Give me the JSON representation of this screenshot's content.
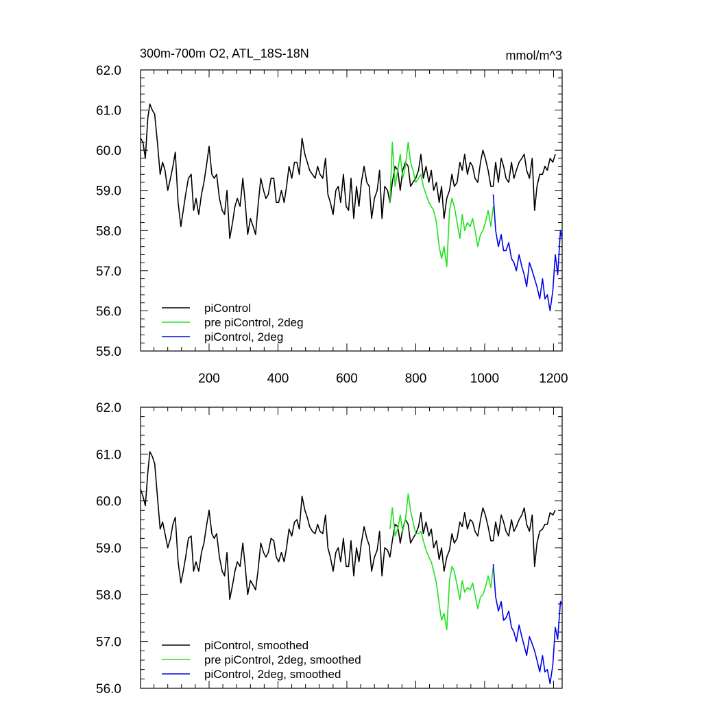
{
  "figure": {
    "title_left": "300m-700m O2, ATL_18S-18N",
    "title_right": "mmol/m^3"
  },
  "chart_data": [
    {
      "type": "line",
      "title": "300m-700m O2, ATL_18S-18N",
      "units": "mmol/m^3",
      "xlabel": "",
      "ylabel": "",
      "xlim": [
        1,
        1225
      ],
      "ylim": [
        55.0,
        62.0
      ],
      "x_ticks": [
        200,
        400,
        600,
        800,
        1000,
        1200
      ],
      "x_tick_labels": [
        "200",
        "400",
        "600",
        "800",
        "1000",
        "1200"
      ],
      "y_ticks": [
        55,
        56,
        57,
        58,
        59,
        60,
        61,
        62
      ],
      "y_tick_labels": [
        "55.0",
        "56.0",
        "57.0",
        "58.0",
        "59.0",
        "60.0",
        "61.0",
        "62.0"
      ],
      "grid": false,
      "legend_position": "bottom-left",
      "series": [
        {
          "name": "piControl",
          "color": "#000000",
          "x": [
            1,
            8,
            15,
            22,
            28,
            35,
            42,
            50,
            58,
            65,
            72,
            80,
            88,
            95,
            102,
            110,
            118,
            125,
            132,
            140,
            148,
            155,
            162,
            170,
            178,
            185,
            192,
            200,
            208,
            215,
            222,
            230,
            238,
            245,
            252,
            260,
            268,
            275,
            282,
            290,
            298,
            305,
            312,
            320,
            328,
            335,
            342,
            350,
            358,
            365,
            372,
            380,
            388,
            395,
            402,
            410,
            418,
            425,
            432,
            440,
            448,
            455,
            462,
            470,
            478,
            485,
            492,
            500,
            508,
            515,
            522,
            530,
            538,
            545,
            552,
            560,
            568,
            575,
            582,
            590,
            598,
            605,
            612,
            620,
            628,
            635,
            642,
            650,
            658,
            665,
            672,
            680,
            688,
            695,
            702,
            710,
            718,
            725,
            732,
            740,
            748,
            755,
            762,
            770,
            778,
            785,
            792,
            800,
            808,
            815,
            822,
            830,
            838,
            845,
            852,
            860,
            868,
            875,
            882,
            890,
            898,
            905,
            912,
            920,
            928,
            935,
            942,
            950,
            958,
            965,
            972,
            980,
            988,
            995,
            1002,
            1010,
            1018,
            1025,
            1032,
            1040,
            1048,
            1055,
            1062,
            1070,
            1078,
            1085,
            1092,
            1100,
            1108,
            1115,
            1122,
            1130,
            1138,
            1145,
            1152,
            1160,
            1168,
            1175,
            1182,
            1190,
            1198,
            1205
          ],
          "y": [
            60.3,
            60.2,
            59.8,
            60.8,
            61.15,
            61.0,
            60.9,
            60.2,
            59.4,
            59.7,
            59.5,
            59.0,
            59.3,
            59.6,
            59.95,
            58.7,
            58.1,
            58.5,
            58.9,
            59.3,
            59.4,
            58.5,
            58.8,
            58.4,
            58.9,
            59.2,
            59.6,
            60.1,
            59.4,
            59.3,
            59.4,
            58.8,
            58.5,
            58.4,
            59.0,
            57.8,
            58.2,
            58.6,
            58.8,
            58.6,
            59.3,
            58.7,
            57.9,
            58.3,
            58.1,
            57.9,
            58.6,
            59.3,
            59.0,
            58.8,
            58.9,
            59.3,
            59.3,
            58.7,
            58.7,
            59.0,
            58.7,
            59.1,
            59.6,
            59.3,
            59.7,
            59.7,
            59.4,
            60.3,
            59.9,
            59.7,
            59.5,
            59.4,
            59.3,
            59.6,
            59.4,
            59.3,
            59.8,
            58.9,
            58.7,
            58.4,
            59.0,
            59.1,
            58.7,
            59.4,
            58.6,
            58.5,
            59.3,
            58.3,
            59.1,
            58.6,
            59.2,
            59.6,
            59.2,
            59.1,
            58.3,
            58.8,
            59.0,
            59.5,
            58.3,
            59.1,
            59.0,
            58.7,
            59.2,
            59.6,
            59.5,
            59.0,
            59.5,
            59.7,
            59.6,
            59.1,
            59.2,
            59.3,
            59.5,
            59.9,
            59.3,
            59.6,
            59.2,
            59.5,
            59.0,
            59.2,
            58.7,
            59.1,
            58.3,
            58.8,
            59.0,
            59.4,
            59.1,
            59.2,
            59.7,
            59.5,
            59.9,
            59.4,
            59.7,
            59.6,
            59.3,
            59.2,
            59.7,
            60.0,
            59.8,
            59.5,
            59.1,
            59.1,
            59.7,
            59.2,
            59.8,
            59.6,
            59.3,
            59.2,
            59.7,
            59.3,
            59.5,
            59.7,
            59.8,
            59.9,
            59.5,
            59.3,
            59.8,
            58.5,
            59.1,
            59.4,
            59.4,
            59.6,
            59.5,
            59.8,
            59.7,
            59.9
          ]
        },
        {
          "name": "pre piControl, 2deg",
          "color": "#1ee11e",
          "x": [
            725,
            732,
            740,
            748,
            755,
            762,
            770,
            778,
            785,
            792,
            800,
            808,
            815,
            822,
            830,
            838,
            845,
            852,
            860,
            868,
            875,
            882,
            890,
            898,
            905,
            912,
            920,
            928,
            935,
            942,
            950,
            958,
            965,
            972,
            980,
            988,
            995,
            1002,
            1010,
            1018,
            1025
          ],
          "y": [
            58.7,
            60.2,
            59.1,
            59.5,
            59.9,
            59.3,
            59.6,
            60.2,
            59.7,
            59.5,
            59.2,
            59.3,
            59.4,
            59.1,
            58.9,
            58.7,
            58.6,
            58.5,
            58.2,
            57.6,
            57.3,
            57.6,
            57.1,
            58.5,
            58.8,
            58.6,
            58.2,
            57.8,
            58.4,
            58.0,
            58.2,
            58.1,
            58.3,
            58.0,
            57.6,
            57.9,
            58.0,
            58.2,
            58.5,
            58.1,
            58.6
          ]
        },
        {
          "name": "piControl, 2deg",
          "color": "#0000e6",
          "x": [
            1025,
            1032,
            1040,
            1048,
            1055,
            1062,
            1070,
            1078,
            1085,
            1092,
            1100,
            1108,
            1115,
            1122,
            1130,
            1138,
            1145,
            1152,
            1160,
            1168,
            1175,
            1182,
            1190,
            1198,
            1205,
            1212,
            1220,
            1225
          ],
          "y": [
            58.9,
            58.0,
            57.6,
            57.9,
            57.5,
            57.5,
            57.7,
            57.3,
            57.2,
            57.0,
            57.4,
            57.1,
            56.9,
            56.6,
            57.2,
            57.0,
            56.8,
            56.6,
            56.3,
            56.8,
            56.3,
            56.4,
            56.0,
            56.5,
            57.4,
            56.9,
            58.0,
            57.8
          ]
        }
      ]
    },
    {
      "type": "line",
      "title": "",
      "xlabel": "",
      "ylabel": "",
      "xlim": [
        1,
        1225
      ],
      "ylim": [
        56.0,
        62.0
      ],
      "y_ticks": [
        56,
        57,
        58,
        59,
        60,
        61,
        62
      ],
      "y_tick_labels": [
        "56.0",
        "57.0",
        "58.0",
        "59.0",
        "60.0",
        "61.0",
        "62.0"
      ],
      "grid": false,
      "legend_position": "bottom-left",
      "series": [
        {
          "name": "piControl, smoothed",
          "color": "#000000",
          "x": [
            1,
            8,
            15,
            22,
            28,
            35,
            42,
            50,
            58,
            65,
            72,
            80,
            88,
            95,
            102,
            110,
            118,
            125,
            132,
            140,
            148,
            155,
            162,
            170,
            178,
            185,
            192,
            200,
            208,
            215,
            222,
            230,
            238,
            245,
            252,
            260,
            268,
            275,
            282,
            290,
            298,
            305,
            312,
            320,
            328,
            335,
            342,
            350,
            358,
            365,
            372,
            380,
            388,
            395,
            402,
            410,
            418,
            425,
            432,
            440,
            448,
            455,
            462,
            470,
            478,
            485,
            492,
            500,
            508,
            515,
            522,
            530,
            538,
            545,
            552,
            560,
            568,
            575,
            582,
            590,
            598,
            605,
            612,
            620,
            628,
            635,
            642,
            650,
            658,
            665,
            672,
            680,
            688,
            695,
            702,
            710,
            718,
            725,
            732,
            740,
            748,
            755,
            762,
            770,
            778,
            785,
            792,
            800,
            808,
            815,
            822,
            830,
            838,
            845,
            852,
            860,
            868,
            875,
            882,
            890,
            898,
            905,
            912,
            920,
            928,
            935,
            942,
            950,
            958,
            965,
            972,
            980,
            988,
            995,
            1002,
            1010,
            1018,
            1025,
            1032,
            1040,
            1048,
            1055,
            1062,
            1070,
            1078,
            1085,
            1092,
            1100,
            1108,
            1115,
            1122,
            1130,
            1138,
            1145,
            1152,
            1160,
            1168,
            1175,
            1182,
            1190,
            1198,
            1205
          ],
          "y": [
            60.25,
            60.1,
            59.9,
            60.6,
            61.05,
            60.95,
            60.8,
            60.1,
            59.4,
            59.55,
            59.3,
            59.0,
            59.2,
            59.5,
            59.65,
            58.7,
            58.25,
            58.5,
            58.8,
            59.2,
            59.25,
            58.5,
            58.7,
            58.5,
            58.9,
            59.1,
            59.45,
            59.8,
            59.3,
            59.2,
            59.3,
            58.8,
            58.5,
            58.4,
            58.9,
            57.9,
            58.2,
            58.5,
            58.7,
            58.6,
            59.1,
            58.6,
            58.0,
            58.3,
            58.2,
            58.1,
            58.5,
            59.1,
            58.9,
            58.8,
            58.9,
            59.2,
            59.15,
            58.8,
            58.7,
            58.9,
            58.7,
            59.0,
            59.4,
            59.25,
            59.55,
            59.6,
            59.4,
            60.1,
            59.8,
            59.65,
            59.45,
            59.35,
            59.3,
            59.5,
            59.35,
            59.3,
            59.7,
            59.0,
            58.8,
            58.5,
            58.9,
            59.0,
            58.7,
            59.2,
            58.6,
            58.6,
            59.15,
            58.4,
            59.0,
            58.7,
            59.1,
            59.45,
            59.2,
            59.05,
            58.5,
            58.8,
            58.95,
            59.35,
            58.4,
            59.0,
            58.95,
            58.8,
            59.15,
            59.5,
            59.45,
            59.1,
            59.4,
            59.6,
            59.5,
            59.1,
            59.2,
            59.3,
            59.45,
            59.75,
            59.3,
            59.55,
            59.25,
            59.4,
            59.0,
            59.15,
            58.75,
            59.0,
            58.5,
            58.8,
            58.95,
            59.3,
            59.1,
            59.2,
            59.55,
            59.45,
            59.75,
            59.4,
            59.6,
            59.55,
            59.35,
            59.25,
            59.6,
            59.85,
            59.7,
            59.45,
            59.15,
            59.15,
            59.55,
            59.25,
            59.7,
            59.55,
            59.35,
            59.25,
            59.6,
            59.35,
            59.45,
            59.6,
            59.7,
            59.85,
            59.5,
            59.35,
            59.7,
            58.6,
            59.1,
            59.35,
            59.4,
            59.5,
            59.5,
            59.75,
            59.7,
            59.8
          ]
        },
        {
          "name": "pre piControl, 2deg, smoothed",
          "color": "#1ee11e",
          "x": [
            725,
            732,
            740,
            748,
            755,
            762,
            770,
            778,
            785,
            792,
            800,
            808,
            815,
            822,
            830,
            838,
            845,
            852,
            860,
            868,
            875,
            882,
            890,
            898,
            905,
            912,
            920,
            928,
            935,
            942,
            950,
            958,
            965,
            972,
            980,
            988,
            995,
            1002,
            1010,
            1018,
            1025
          ],
          "y": [
            59.4,
            59.85,
            59.25,
            59.4,
            59.7,
            59.35,
            59.6,
            60.15,
            59.8,
            59.55,
            59.3,
            59.3,
            59.35,
            59.15,
            58.95,
            58.8,
            58.7,
            58.5,
            58.25,
            57.8,
            57.45,
            57.6,
            57.25,
            58.3,
            58.6,
            58.5,
            58.2,
            57.9,
            58.3,
            58.05,
            58.15,
            58.1,
            58.25,
            58.0,
            57.7,
            57.95,
            58.0,
            58.15,
            58.4,
            58.15,
            58.6
          ]
        },
        {
          "name": "piControl, 2deg, smoothed",
          "color": "#0000e6",
          "x": [
            1025,
            1032,
            1040,
            1048,
            1055,
            1062,
            1070,
            1078,
            1085,
            1092,
            1100,
            1108,
            1115,
            1122,
            1130,
            1138,
            1145,
            1152,
            1160,
            1168,
            1175,
            1182,
            1190,
            1198,
            1205,
            1212,
            1220,
            1225
          ],
          "y": [
            58.65,
            57.95,
            57.65,
            57.85,
            57.45,
            57.5,
            57.65,
            57.3,
            57.2,
            57.0,
            57.35,
            57.1,
            56.9,
            56.7,
            57.1,
            56.95,
            56.8,
            56.6,
            56.35,
            56.7,
            56.35,
            56.4,
            56.1,
            56.5,
            57.3,
            57.05,
            57.85,
            57.8
          ]
        }
      ]
    }
  ]
}
